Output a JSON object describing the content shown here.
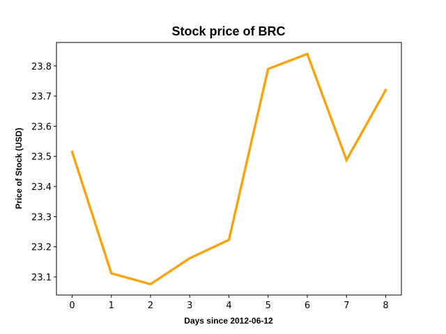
{
  "chart_data": {
    "type": "line",
    "title": "Stock price of BRC",
    "xlabel": "Days since 2012-06-12",
    "ylabel": "Price of Stock (USD)",
    "x": [
      0,
      1,
      2,
      3,
      4,
      5,
      6,
      7,
      8
    ],
    "series": [
      {
        "values": [
          23.515,
          23.112,
          23.076,
          23.162,
          23.223,
          23.79,
          23.84,
          23.488,
          23.72
        ],
        "color": "#F5A511"
      }
    ],
    "xticks": [
      "0",
      "1",
      "2",
      "3",
      "4",
      "5",
      "6",
      "7",
      "8"
    ],
    "yticks": [
      "23.1",
      "23.2",
      "23.3",
      "23.4",
      "23.5",
      "23.6",
      "23.7",
      "23.8"
    ],
    "xlim": [
      -0.4,
      8.4
    ],
    "ylim": [
      23.04,
      23.878
    ],
    "grid": false,
    "legend": "none"
  }
}
